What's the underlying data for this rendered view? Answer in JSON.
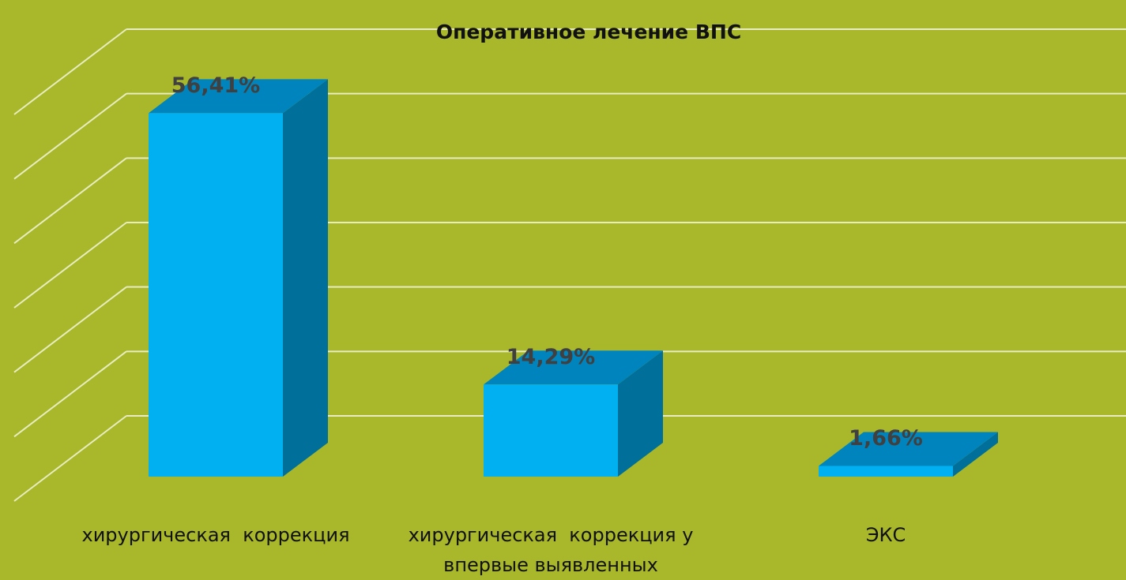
{
  "chart_data": {
    "type": "bar3d",
    "title": "Оперативное лечение ВПС",
    "categories": [
      "хирургическая  коррекция",
      "хирургическая  коррекция у впервые выявленных",
      "ЭКС"
    ],
    "values": [
      56.41,
      14.29,
      1.66
    ],
    "value_labels": [
      "56,41%",
      "14,29%",
      "1,66%"
    ],
    "color": "#00b0f0",
    "ylim": [
      0,
      60
    ],
    "yticks": [
      0,
      10,
      20,
      30,
      40,
      50,
      60
    ],
    "grid": true
  }
}
